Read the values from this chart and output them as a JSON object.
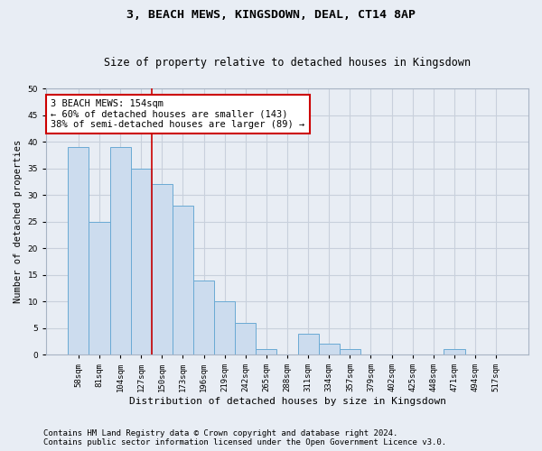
{
  "title": "3, BEACH MEWS, KINGSDOWN, DEAL, CT14 8AP",
  "subtitle": "Size of property relative to detached houses in Kingsdown",
  "xlabel": "Distribution of detached houses by size in Kingsdown",
  "ylabel": "Number of detached properties",
  "categories": [
    "58sqm",
    "81sqm",
    "104sqm",
    "127sqm",
    "150sqm",
    "173sqm",
    "196sqm",
    "219sqm",
    "242sqm",
    "265sqm",
    "288sqm",
    "311sqm",
    "334sqm",
    "357sqm",
    "379sqm",
    "402sqm",
    "425sqm",
    "448sqm",
    "471sqm",
    "494sqm",
    "517sqm"
  ],
  "values": [
    39,
    25,
    39,
    35,
    32,
    28,
    14,
    10,
    6,
    1,
    0,
    4,
    2,
    1,
    0,
    0,
    0,
    0,
    1,
    0,
    0
  ],
  "bar_color": "#ccdcee",
  "bar_edgecolor": "#6aaad4",
  "grid_color": "#c8d0dc",
  "background_color": "#e8edf4",
  "vline_index": 4.0,
  "annotation_text": "3 BEACH MEWS: 154sqm\n← 60% of detached houses are smaller (143)\n38% of semi-detached houses are larger (89) →",
  "annotation_box_color": "#ffffff",
  "annotation_box_edgecolor": "#cc0000",
  "vline_color": "#cc0000",
  "ylim": [
    0,
    50
  ],
  "yticks": [
    0,
    5,
    10,
    15,
    20,
    25,
    30,
    35,
    40,
    45,
    50
  ],
  "footer1": "Contains HM Land Registry data © Crown copyright and database right 2024.",
  "footer2": "Contains public sector information licensed under the Open Government Licence v3.0.",
  "title_fontsize": 9.5,
  "subtitle_fontsize": 8.5,
  "xlabel_fontsize": 8,
  "ylabel_fontsize": 7.5,
  "tick_fontsize": 6.5,
  "annotation_fontsize": 7.5,
  "footer_fontsize": 6.5
}
